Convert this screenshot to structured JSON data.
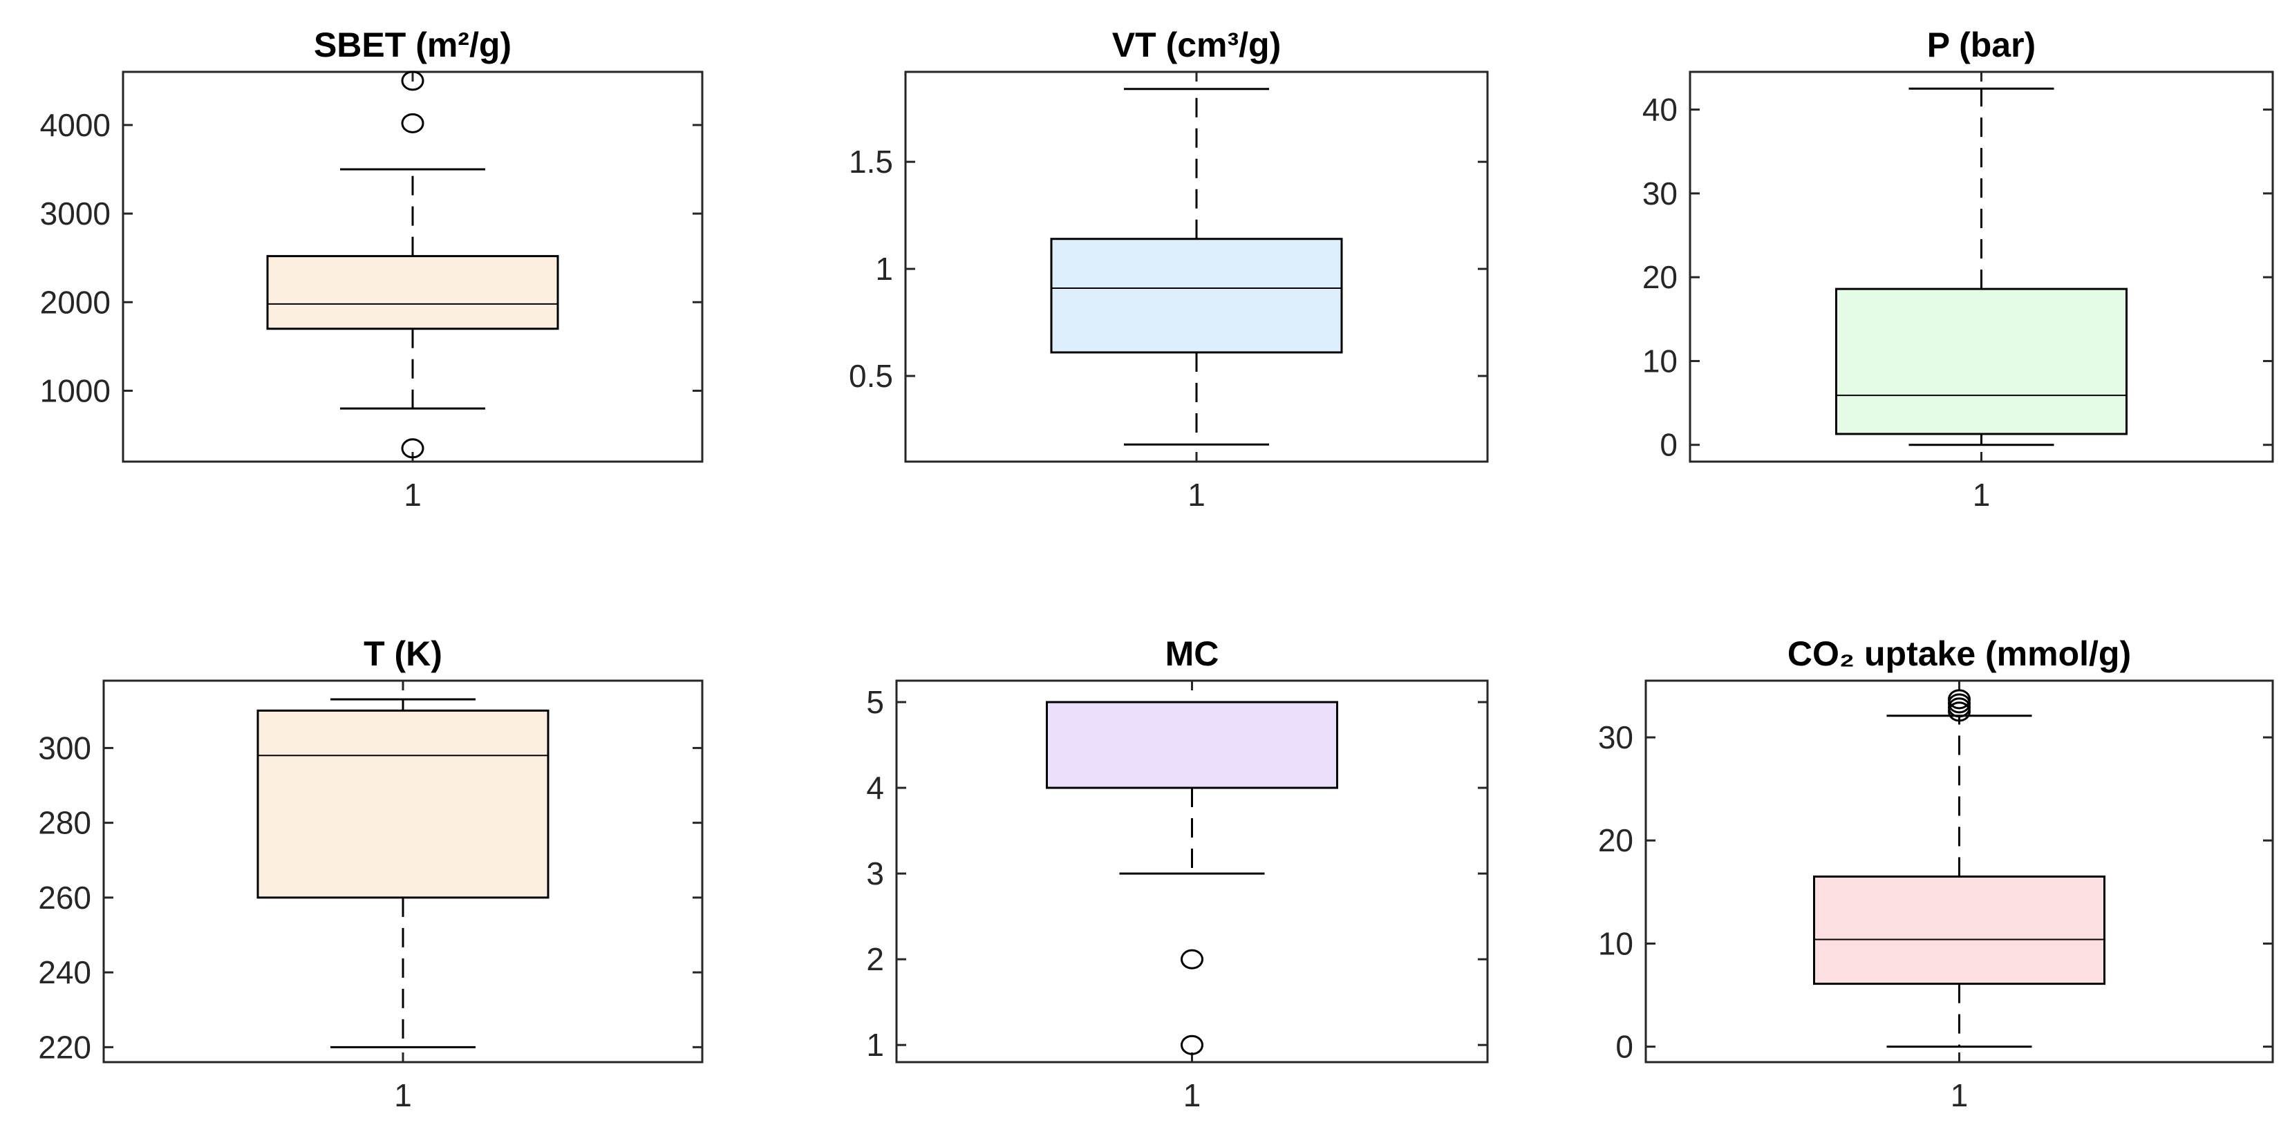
{
  "chart_data": [
    {
      "type": "box",
      "title": "SBET (m²/g)",
      "color": "#fdefe0",
      "categories": [
        "1"
      ],
      "ylim": [
        200,
        4600
      ],
      "yticks": [
        1000,
        2000,
        3000,
        4000
      ],
      "ytick_labels": [
        "1000",
        "2000",
        "3000",
        "4000"
      ],
      "stats": {
        "whisker_low": 800,
        "q1": 1700,
        "median": 1980,
        "q3": 2520,
        "whisker_high": 3500
      },
      "outliers": [
        350,
        4020,
        4500
      ]
    },
    {
      "type": "box",
      "title": "VT (cm³/g)",
      "color": "#ddeefd",
      "categories": [
        "1"
      ],
      "ylim": [
        0.1,
        1.92
      ],
      "yticks": [
        0.5,
        1,
        1.5
      ],
      "ytick_labels": [
        "0.5",
        "1",
        "1.5"
      ],
      "stats": {
        "whisker_low": 0.18,
        "q1": 0.61,
        "median": 0.91,
        "q3": 1.14,
        "whisker_high": 1.84
      },
      "outliers": []
    },
    {
      "type": "box",
      "title": "P (bar)",
      "color": "#e4fce6",
      "categories": [
        "1"
      ],
      "ylim": [
        -2,
        44.5
      ],
      "yticks": [
        0,
        10,
        20,
        30,
        40
      ],
      "ytick_labels": [
        "0",
        "10",
        "20",
        "30",
        "40"
      ],
      "stats": {
        "whisker_low": 0,
        "q1": 1.3,
        "median": 5.9,
        "q3": 18.6,
        "whisker_high": 42.5
      },
      "outliers": []
    },
    {
      "type": "box",
      "title": "T (K)",
      "color": "#fdefe0",
      "categories": [
        "1"
      ],
      "ylim": [
        216,
        318
      ],
      "yticks": [
        220,
        240,
        260,
        280,
        300
      ],
      "ytick_labels": [
        "220",
        "240",
        "260",
        "280",
        "300"
      ],
      "stats": {
        "whisker_low": 220,
        "q1": 260,
        "median": 298,
        "q3": 310,
        "whisker_high": 313
      },
      "outliers": []
    },
    {
      "type": "box",
      "title": "MC",
      "color": "#ebdffc",
      "categories": [
        "1"
      ],
      "ylim": [
        0.8,
        5.25
      ],
      "yticks": [
        1,
        2,
        3,
        4,
        5
      ],
      "ytick_labels": [
        "1",
        "2",
        "3",
        "4",
        "5"
      ],
      "stats": {
        "whisker_low": 3,
        "q1": 4,
        "median": 5,
        "q3": 5,
        "whisker_high": 5
      },
      "outliers": [
        1,
        2
      ]
    },
    {
      "type": "box",
      "title": "CO₂ uptake (mmol/g)",
      "color": "#fcdfe0",
      "categories": [
        "1"
      ],
      "ylim": [
        -1.5,
        35.5
      ],
      "yticks": [
        0,
        10,
        20,
        30
      ],
      "ytick_labels": [
        "0",
        "10",
        "20",
        "30"
      ],
      "stats": {
        "whisker_low": 0,
        "q1": 6.1,
        "median": 10.4,
        "q3": 16.5,
        "whisker_high": 32.1
      },
      "outliers": [
        32.5,
        32.9,
        33.3,
        33.7
      ]
    }
  ]
}
